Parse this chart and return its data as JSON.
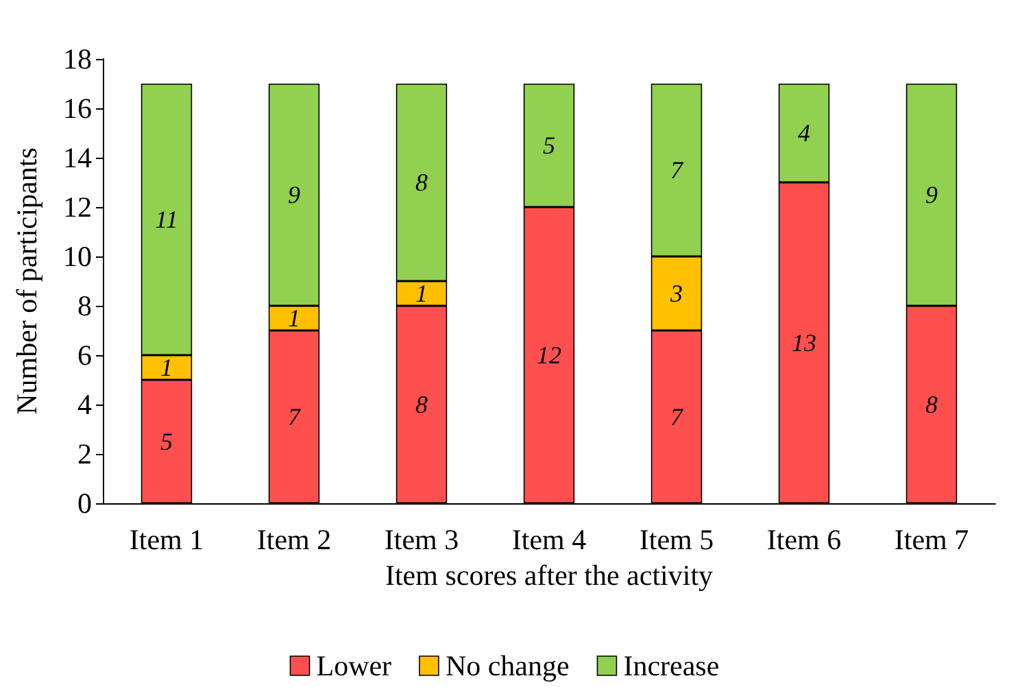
{
  "chart_data": {
    "type": "bar",
    "stacked": true,
    "xlabel": "Item scores after the activity",
    "ylabel": "Number of participants",
    "categories": [
      "Item 1",
      "Item 2",
      "Item 3",
      "Item 4",
      "Item 5",
      "Item 6",
      "Item 7"
    ],
    "series": [
      {
        "name": "Lower",
        "color": "#ff5050",
        "values": [
          5,
          7,
          8,
          12,
          7,
          13,
          8
        ],
        "value_labels": [
          "5",
          "7",
          "8",
          "12",
          "7",
          "13",
          "8"
        ]
      },
      {
        "name": "No change",
        "color": "#ffc000",
        "values": [
          1,
          1,
          1,
          0,
          3,
          0,
          0
        ],
        "value_labels": [
          "1",
          "1",
          "1",
          null,
          "3",
          null,
          null
        ]
      },
      {
        "name": "Increase",
        "color": "#92d050",
        "values": [
          11,
          9,
          8,
          5,
          7,
          4,
          9
        ],
        "value_labels": [
          "11",
          "9",
          "8",
          "5",
          "7",
          "4",
          "9"
        ]
      }
    ],
    "ylim": [
      0,
      18
    ],
    "yticks": [
      0,
      2,
      4,
      6,
      8,
      10,
      12,
      14,
      16,
      18
    ],
    "grid": false,
    "legend": "bottom"
  }
}
